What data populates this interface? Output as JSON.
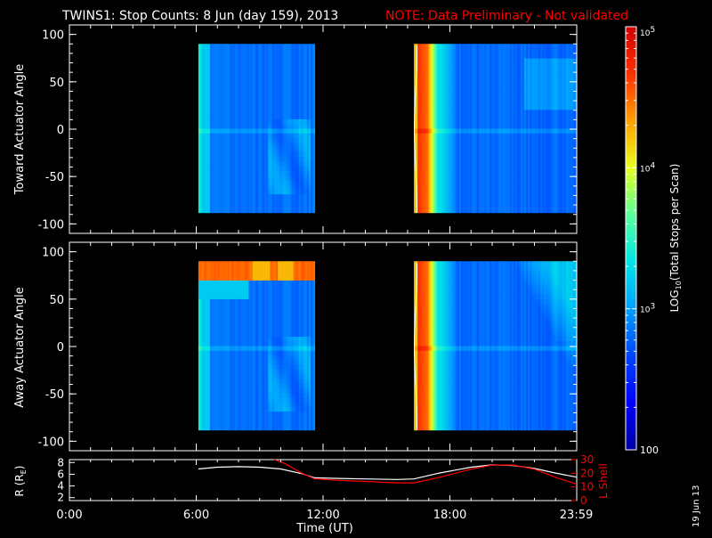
{
  "header": {
    "title": "TWINS1: Stop Counts:  8 Jun (day 159), 2013",
    "note": "NOTE: Data Preliminary - Not validated"
  },
  "colors": {
    "background": "#000000",
    "foreground": "#ffffff",
    "note": "#ff0000",
    "r_trace": "#ffffff",
    "lshell_trace": "#ff0000",
    "colormap": [
      "#00009f",
      "#0000ff",
      "#0046ff",
      "#009fff",
      "#00e6e6",
      "#5aff9c",
      "#e6ff1e",
      "#ffa000",
      "#ff3000",
      "#d00000"
    ]
  },
  "colorbar": {
    "title": "LOG10(Total Stops per Scan)",
    "title_main": "LOG",
    "title_sub": "10",
    "title_rest": "(Total Stops per Scan)",
    "scale": "log",
    "range": [
      100,
      100000
    ],
    "ticks": [
      {
        "value": 100000,
        "base": "10",
        "exp": "5"
      },
      {
        "value": 10000,
        "base": "10",
        "exp": "4"
      },
      {
        "value": 1000,
        "base": "10",
        "exp": "3"
      },
      {
        "value": 100,
        "base": "100",
        "exp": ""
      }
    ]
  },
  "footer": {
    "date_stamp": "19 Jun 13"
  },
  "chart_data": [
    {
      "type": "heatmap",
      "name": "toward",
      "ylabel": "Toward Actuator Angle",
      "ylim": [
        -110,
        110
      ],
      "yticks": [
        "100",
        "50",
        "0",
        "-50",
        "-100"
      ],
      "ytick_values": [
        100,
        50,
        0,
        -50,
        -100
      ],
      "xlim": [
        0,
        24
      ],
      "data_extent": {
        "angle": [
          -88,
          90
        ]
      },
      "intervals": [
        {
          "start": 6.1,
          "end": 11.6
        },
        {
          "start": 16.3,
          "end": 24.0
        }
      ],
      "colorscale": "log10 counts, 100 to 100000",
      "description_level": {
        "pass1_start_edge": "cyan-green (~3e3)",
        "pass1_body": "blue (~500-800)",
        "pass2_start_band": "red-orange (~3e4-8e4)",
        "pass2_body": "blue-cyan (~500-2e3)"
      }
    },
    {
      "type": "heatmap",
      "name": "away",
      "ylabel": "Away Actuator Angle",
      "ylim": [
        -110,
        110
      ],
      "yticks": [
        "100",
        "50",
        "0",
        "-50",
        "-100"
      ],
      "ytick_values": [
        100,
        50,
        0,
        -50,
        -100
      ],
      "xlim": [
        0,
        24
      ],
      "data_extent": {
        "angle": [
          -88,
          90
        ]
      },
      "intervals": [
        {
          "start": 6.1,
          "end": 11.6
        },
        {
          "start": 16.3,
          "end": 24.0
        }
      ],
      "colorscale": "log10 counts, 100 to 100000",
      "description_level": {
        "pass1_top_band": "orange-red (~3e4) near angle 70-90",
        "pass1_body": "blue (~500-800)",
        "pass2_start_band": "red-orange (~3e4-8e4)",
        "pass2_body": "blue-cyan (~500-2e3)"
      }
    },
    {
      "type": "line",
      "name": "orbit",
      "xlabel": "Time (UT)",
      "xlim": [
        0,
        24
      ],
      "xticks": [
        "0:00",
        "6:00",
        "12:00",
        "18:00",
        "23:59"
      ],
      "xtick_values": [
        0,
        6,
        12,
        18,
        23.98
      ],
      "ylabel_left": "R (RE)",
      "ylabel_left_main": "R (R",
      "ylabel_left_sub": "E",
      "ylabel_left_end": ")",
      "ylim_left": [
        1.5,
        8.5
      ],
      "yticks_left": [
        "2",
        "4",
        "6",
        "8"
      ],
      "yticks_left_values": [
        2,
        4,
        6,
        8
      ],
      "ylabel_right": "L Shell",
      "ylim_right": [
        0,
        30
      ],
      "yticks_right": [
        "0",
        "10",
        "20",
        "30"
      ],
      "yticks_right_values": [
        0,
        10,
        20,
        30
      ],
      "series": [
        {
          "axis": "left",
          "x": [
            6.1,
            7.0,
            8.0,
            9.0,
            10.0,
            11.0,
            11.6,
            12.5,
            14.0,
            15.5,
            16.3,
            17.5,
            19.0,
            20.0,
            21.0,
            22.0,
            23.0,
            24.0
          ],
          "y": [
            6.9,
            7.2,
            7.3,
            7.2,
            6.9,
            6.1,
            5.4,
            5.3,
            5.2,
            5.1,
            5.2,
            6.2,
            7.2,
            7.6,
            7.5,
            7.0,
            6.2,
            5.5
          ]
        },
        {
          "axis": "right",
          "x": [
            9.7,
            10.2,
            11.0,
            11.6,
            12.5,
            14.0,
            15.5,
            16.3,
            17.5,
            19.0,
            20.0,
            21.0,
            22.0,
            23.0,
            24.0
          ],
          "y": [
            30,
            27,
            20,
            16,
            15,
            14,
            13,
            13,
            17,
            23,
            26,
            26,
            23,
            17,
            12
          ]
        }
      ]
    }
  ]
}
